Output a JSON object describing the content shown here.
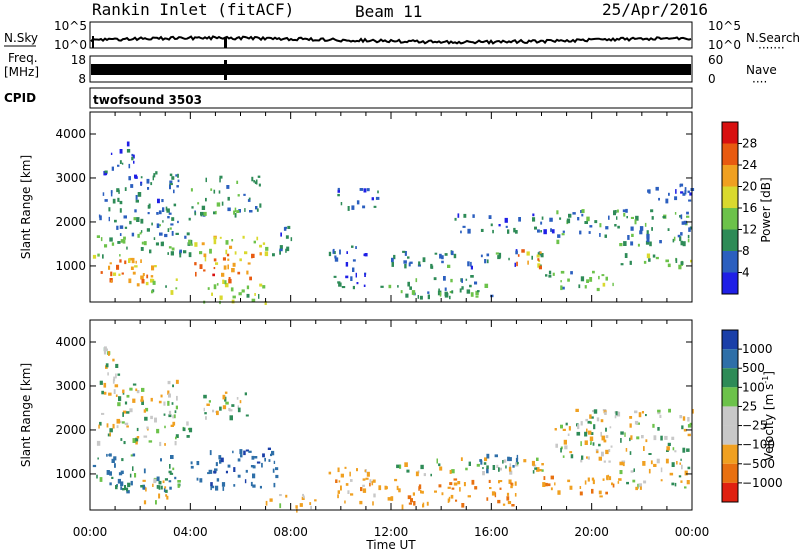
{
  "header": {
    "station": "Rankin Inlet (fitACF)",
    "beam": "Beam 11",
    "date": "25/Apr/2016"
  },
  "strip": {
    "nsky_label": "N.Sky",
    "nsearch_label": "N.Search",
    "nsearch_dots": "·······",
    "nsky_ticks": [
      "10^5",
      "10^0"
    ],
    "nsearch_ticks": [
      "10^5",
      "10^0"
    ],
    "freq_label_1": "Freq.",
    "freq_label_2": "[MHz]",
    "freq_ticks": [
      "18",
      "8"
    ],
    "nave_label": "Nave",
    "nave_dots": "····",
    "nave_ticks": [
      "60",
      "0"
    ],
    "cpid_label": "CPID",
    "program": "twofsound 3503"
  },
  "axes": {
    "ylabel": "Slant Range [km]",
    "xlabel": "Time UT",
    "yticks": [
      "1000",
      "2000",
      "3000",
      "4000"
    ],
    "xticks": [
      "00:00",
      "04:00",
      "08:00",
      "12:00",
      "16:00",
      "20:00",
      "00:00"
    ]
  },
  "colorbars": {
    "power": {
      "label": "Power [dB]",
      "ticks": [
        "4",
        "8",
        "12",
        "16",
        "20",
        "24",
        "28"
      ],
      "colors": [
        "#1f1fe6",
        "#2b5fbf",
        "#2e8b57",
        "#6cc24a",
        "#d9d92e",
        "#f0a020",
        "#e85a10",
        "#d81010"
      ]
    },
    "velocity": {
      "label_main": "Velocity [m s",
      "label_sup": "-1",
      "label_end": "]",
      "ticks": [
        "1000",
        "500",
        "100",
        "25",
        "−25",
        "−100",
        "−500",
        "−1000"
      ],
      "colors": [
        "#1a3fa8",
        "#2e6fa8",
        "#2e8b57",
        "#6cc24a",
        "#c8c8c8",
        "#c8c8c8",
        "#f0a020",
        "#e87010",
        "#e02010"
      ]
    }
  },
  "chart_data": [
    {
      "type": "heatmap",
      "title": "Power",
      "xlabel": "Time UT",
      "ylabel": "Slant Range [km]",
      "xlim": [
        0,
        24
      ],
      "ylim": [
        180,
        4500
      ],
      "colorbar": {
        "label": "Power [dB]",
        "range": [
          0,
          32
        ]
      },
      "regions": [
        {
          "x": [
            0.1,
            3.0
          ],
          "y": [
            600,
            1200
          ],
          "value": 22
        },
        {
          "x": [
            0.1,
            4.0
          ],
          "y": [
            1200,
            1700
          ],
          "value": 12
        },
        {
          "x": [
            0.2,
            4.0
          ],
          "y": [
            1700,
            2200
          ],
          "value": 9
        },
        {
          "x": [
            0.5,
            3.5
          ],
          "y": [
            2200,
            3200
          ],
          "value": 7
        },
        {
          "x": [
            0.8,
            1.8
          ],
          "y": [
            3200,
            3900
          ],
          "value": 6
        },
        {
          "x": [
            2.2,
            3.5
          ],
          "y": [
            400,
            800
          ],
          "value": 14
        },
        {
          "x": [
            4.0,
            6.5
          ],
          "y": [
            700,
            1300
          ],
          "value": 24
        },
        {
          "x": [
            4.0,
            7.2
          ],
          "y": [
            1300,
            1700
          ],
          "value": 17
        },
        {
          "x": [
            4.0,
            6.8
          ],
          "y": [
            2200,
            3100
          ],
          "value": 9
        },
        {
          "x": [
            7.2,
            8.0
          ],
          "y": [
            1200,
            2000
          ],
          "value": 7
        },
        {
          "x": [
            4.5,
            7.0
          ],
          "y": [
            200,
            700
          ],
          "value": 15
        },
        {
          "x": [
            9.5,
            11.0
          ],
          "y": [
            500,
            1500
          ],
          "value": 6
        },
        {
          "x": [
            9.8,
            11.5
          ],
          "y": [
            2300,
            2800
          ],
          "value": 6
        },
        {
          "x": [
            11.5,
            16.0
          ],
          "y": [
            300,
            800
          ],
          "value": 11
        },
        {
          "x": [
            12.0,
            18.0
          ],
          "y": [
            1000,
            1400
          ],
          "value": 8
        },
        {
          "x": [
            16.5,
            18.0
          ],
          "y": [
            1000,
            1400
          ],
          "value": 22
        },
        {
          "x": [
            14.5,
            18.5
          ],
          "y": [
            1800,
            2200
          ],
          "value": 6
        },
        {
          "x": [
            18.5,
            24.0
          ],
          "y": [
            1500,
            2300
          ],
          "value": 9
        },
        {
          "x": [
            18.0,
            21.0
          ],
          "y": [
            500,
            900
          ],
          "value": 12
        },
        {
          "x": [
            21.0,
            24.0
          ],
          "y": [
            1000,
            1300
          ],
          "value": 14
        },
        {
          "x": [
            22.0,
            24.0
          ],
          "y": [
            2400,
            2900
          ],
          "value": 7
        }
      ]
    },
    {
      "type": "heatmap",
      "title": "Velocity",
      "xlabel": "Time UT",
      "ylabel": "Slant Range [km]",
      "xlim": [
        0,
        24
      ],
      "ylim": [
        180,
        4500
      ],
      "colorbar": {
        "label": "Velocity [m s-1]",
        "range": [
          -1000,
          1000
        ]
      },
      "regions": [
        {
          "x": [
            0.1,
            3.5
          ],
          "y": [
            600,
            1500
          ],
          "value": 300
        },
        {
          "x": [
            0.1,
            4.0
          ],
          "y": [
            1700,
            2300
          ],
          "value": 0
        },
        {
          "x": [
            0.3,
            3.5
          ],
          "y": [
            2300,
            3200
          ],
          "value": 0
        },
        {
          "x": [
            0.5,
            1.5
          ],
          "y": [
            3200,
            4000
          ],
          "value": 0
        },
        {
          "x": [
            2.0,
            3.5
          ],
          "y": [
            400,
            900
          ],
          "value": -100
        },
        {
          "x": [
            4.0,
            7.5
          ],
          "y": [
            700,
            1600
          ],
          "value": 600
        },
        {
          "x": [
            4.5,
            6.5
          ],
          "y": [
            2300,
            3000
          ],
          "value": 0
        },
        {
          "x": [
            7.0,
            9.0
          ],
          "y": [
            200,
            600
          ],
          "value": -200
        },
        {
          "x": [
            9.5,
            11.5
          ],
          "y": [
            300,
            1200
          ],
          "value": -300
        },
        {
          "x": [
            11.5,
            17.0
          ],
          "y": [
            300,
            900
          ],
          "value": -400
        },
        {
          "x": [
            12.0,
            18.0
          ],
          "y": [
            1000,
            1400
          ],
          "value": 0
        },
        {
          "x": [
            15.5,
            17.5
          ],
          "y": [
            1100,
            1500
          ],
          "value": 500
        },
        {
          "x": [
            18.0,
            21.0
          ],
          "y": [
            500,
            1000
          ],
          "value": -400
        },
        {
          "x": [
            18.5,
            24.0
          ],
          "y": [
            1300,
            2500
          ],
          "value": 0
        },
        {
          "x": [
            21.0,
            24.0
          ],
          "y": [
            700,
            1300
          ],
          "value": -100
        }
      ]
    }
  ]
}
